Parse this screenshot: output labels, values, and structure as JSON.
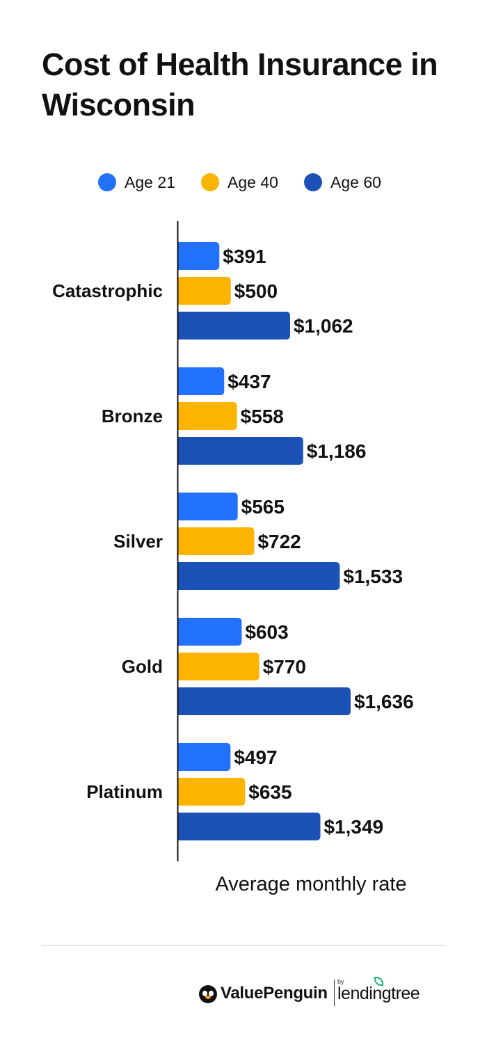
{
  "chart_data": {
    "type": "bar",
    "orientation": "horizontal",
    "title": "Cost of Health Insurance in Wisconsin",
    "xlabel": "Average monthly rate",
    "ylabel": "",
    "categories": [
      "Catastrophic",
      "Bronze",
      "Silver",
      "Gold",
      "Platinum"
    ],
    "series": [
      {
        "name": "Age 21",
        "color": "#2271fb",
        "values": [
          391,
          437,
          565,
          603,
          497
        ],
        "labels": [
          "$391",
          "$437",
          "$565",
          "$603",
          "$497"
        ]
      },
      {
        "name": "Age 40",
        "color": "#fbb401",
        "values": [
          500,
          558,
          722,
          770,
          635
        ],
        "labels": [
          "$500",
          "$558",
          "$722",
          "$770",
          "$635"
        ]
      },
      {
        "name": "Age 60",
        "color": "#1c52b5",
        "values": [
          1062,
          1186,
          1533,
          1636,
          1349
        ],
        "labels": [
          "$1,062",
          "$1,186",
          "$1,533",
          "$1,636",
          "$1,349"
        ]
      }
    ],
    "xlim": [
      0,
      1636
    ],
    "grid": false,
    "legend_position": "top-center"
  },
  "branding": {
    "primary": "ValuePenguin",
    "by": "by",
    "secondary": "lendingtree",
    "primary_icon": "penguin-icon",
    "secondary_icon": "leaf-icon",
    "secondary_color": "#1ab37a"
  }
}
